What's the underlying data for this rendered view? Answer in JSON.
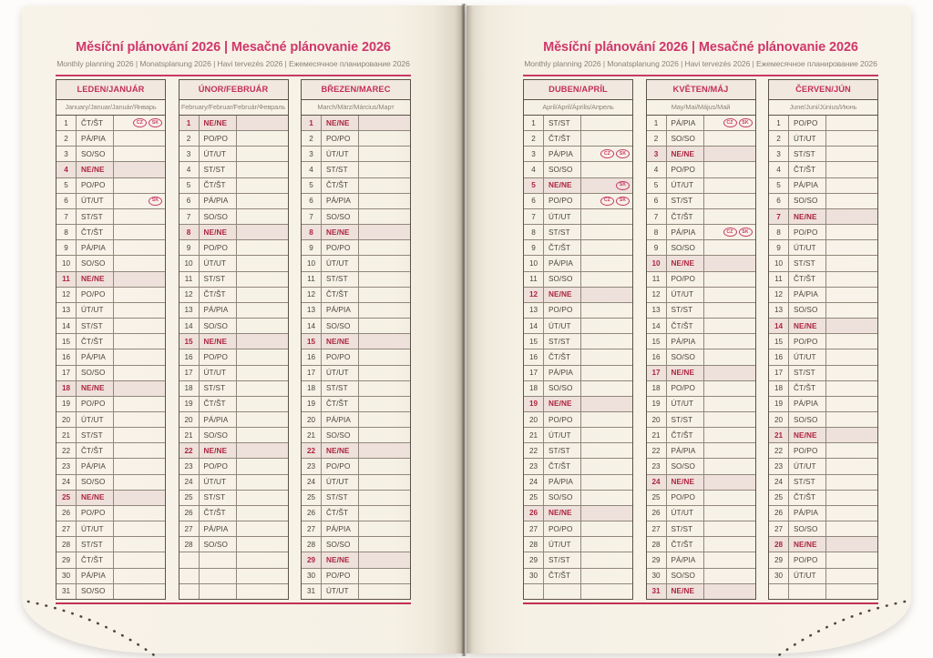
{
  "header": {
    "title": "Měsíční plánování 2026 | Mesačné plánovanie 2026",
    "subtitle": "Monthly planning 2026 | Monatsplanung 2026 | Havi tervezés 2026 | Ежемесячное планирование 2026"
  },
  "colors": {
    "accent_pink": "#d0376b",
    "rule_pink": "#c93a68",
    "month_header_pink": "#c42f58",
    "sunday_text_red": "#ad2540",
    "sunday_row_bg": "#eee1db",
    "page_cream": "#f6f1e5",
    "day_text": "#4a443b",
    "muted_text": "#8b8478",
    "grid_line": "#90877a"
  },
  "holiday_badge_labels": [
    "CZ",
    "SK"
  ],
  "months": [
    {
      "id": "january",
      "page": "left",
      "name": "LEDEN/JANUÁR",
      "subtitle": "January/Januar/Január/Январь",
      "rows": [
        {
          "n": "1",
          "d": "ČT/ŠT",
          "b": [
            "CZ",
            "SK"
          ]
        },
        {
          "n": "2",
          "d": "PÁ/PIA"
        },
        {
          "n": "3",
          "d": "SO/SO"
        },
        {
          "n": "4",
          "d": "NE/NE",
          "s": 1
        },
        {
          "n": "5",
          "d": "PO/PO"
        },
        {
          "n": "6",
          "d": "ÚT/UT",
          "b": [
            "SK"
          ]
        },
        {
          "n": "7",
          "d": "ST/ST"
        },
        {
          "n": "8",
          "d": "ČT/ŠT"
        },
        {
          "n": "9",
          "d": "PÁ/PIA"
        },
        {
          "n": "10",
          "d": "SO/SO"
        },
        {
          "n": "11",
          "d": "NE/NE",
          "s": 1
        },
        {
          "n": "12",
          "d": "PO/PO"
        },
        {
          "n": "13",
          "d": "ÚT/UT"
        },
        {
          "n": "14",
          "d": "ST/ST"
        },
        {
          "n": "15",
          "d": "ČT/ŠT"
        },
        {
          "n": "16",
          "d": "PÁ/PIA"
        },
        {
          "n": "17",
          "d": "SO/SO"
        },
        {
          "n": "18",
          "d": "NE/NE",
          "s": 1
        },
        {
          "n": "19",
          "d": "PO/PO"
        },
        {
          "n": "20",
          "d": "ÚT/UT"
        },
        {
          "n": "21",
          "d": "ST/ST"
        },
        {
          "n": "22",
          "d": "ČT/ŠT"
        },
        {
          "n": "23",
          "d": "PÁ/PIA"
        },
        {
          "n": "24",
          "d": "SO/SO"
        },
        {
          "n": "25",
          "d": "NE/NE",
          "s": 1
        },
        {
          "n": "26",
          "d": "PO/PO"
        },
        {
          "n": "27",
          "d": "ÚT/UT"
        },
        {
          "n": "28",
          "d": "ST/ST"
        },
        {
          "n": "29",
          "d": "ČT/ŠT"
        },
        {
          "n": "30",
          "d": "PÁ/PIA"
        },
        {
          "n": "31",
          "d": "SO/SO"
        }
      ]
    },
    {
      "id": "february",
      "page": "left",
      "name": "ÚNOR/FEBRUÁR",
      "subtitle": "February/Februar/Február/Февраль",
      "rows": [
        {
          "n": "1",
          "d": "NE/NE",
          "s": 1
        },
        {
          "n": "2",
          "d": "PO/PO"
        },
        {
          "n": "3",
          "d": "ÚT/UT"
        },
        {
          "n": "4",
          "d": "ST/ST"
        },
        {
          "n": "5",
          "d": "ČT/ŠT"
        },
        {
          "n": "6",
          "d": "PÁ/PIA"
        },
        {
          "n": "7",
          "d": "SO/SO"
        },
        {
          "n": "8",
          "d": "NE/NE",
          "s": 1
        },
        {
          "n": "9",
          "d": "PO/PO"
        },
        {
          "n": "10",
          "d": "ÚT/UT"
        },
        {
          "n": "11",
          "d": "ST/ST"
        },
        {
          "n": "12",
          "d": "ČT/ŠT"
        },
        {
          "n": "13",
          "d": "PÁ/PIA"
        },
        {
          "n": "14",
          "d": "SO/SO"
        },
        {
          "n": "15",
          "d": "NE/NE",
          "s": 1
        },
        {
          "n": "16",
          "d": "PO/PO"
        },
        {
          "n": "17",
          "d": "ÚT/UT"
        },
        {
          "n": "18",
          "d": "ST/ST"
        },
        {
          "n": "19",
          "d": "ČT/ŠT"
        },
        {
          "n": "20",
          "d": "PÁ/PIA"
        },
        {
          "n": "21",
          "d": "SO/SO"
        },
        {
          "n": "22",
          "d": "NE/NE",
          "s": 1
        },
        {
          "n": "23",
          "d": "PO/PO"
        },
        {
          "n": "24",
          "d": "ÚT/UT"
        },
        {
          "n": "25",
          "d": "ST/ST"
        },
        {
          "n": "26",
          "d": "ČT/ŠT"
        },
        {
          "n": "27",
          "d": "PÁ/PIA"
        },
        {
          "n": "28",
          "d": "SO/SO"
        },
        {
          "n": "",
          "d": ""
        },
        {
          "n": "",
          "d": ""
        },
        {
          "n": "",
          "d": ""
        }
      ]
    },
    {
      "id": "march",
      "page": "left",
      "name": "BŘEZEN/MAREC",
      "subtitle": "March/März/Március/Март",
      "rows": [
        {
          "n": "1",
          "d": "NE/NE",
          "s": 1
        },
        {
          "n": "2",
          "d": "PO/PO"
        },
        {
          "n": "3",
          "d": "ÚT/UT"
        },
        {
          "n": "4",
          "d": "ST/ST"
        },
        {
          "n": "5",
          "d": "ČT/ŠT"
        },
        {
          "n": "6",
          "d": "PÁ/PIA"
        },
        {
          "n": "7",
          "d": "SO/SO"
        },
        {
          "n": "8",
          "d": "NE/NE",
          "s": 1
        },
        {
          "n": "9",
          "d": "PO/PO"
        },
        {
          "n": "10",
          "d": "ÚT/UT"
        },
        {
          "n": "11",
          "d": "ST/ST"
        },
        {
          "n": "12",
          "d": "ČT/ŠT"
        },
        {
          "n": "13",
          "d": "PÁ/PIA"
        },
        {
          "n": "14",
          "d": "SO/SO"
        },
        {
          "n": "15",
          "d": "NE/NE",
          "s": 1
        },
        {
          "n": "16",
          "d": "PO/PO"
        },
        {
          "n": "17",
          "d": "ÚT/UT"
        },
        {
          "n": "18",
          "d": "ST/ST"
        },
        {
          "n": "19",
          "d": "ČT/ŠT"
        },
        {
          "n": "20",
          "d": "PÁ/PIA"
        },
        {
          "n": "21",
          "d": "SO/SO"
        },
        {
          "n": "22",
          "d": "NE/NE",
          "s": 1
        },
        {
          "n": "23",
          "d": "PO/PO"
        },
        {
          "n": "24",
          "d": "ÚT/UT"
        },
        {
          "n": "25",
          "d": "ST/ST"
        },
        {
          "n": "26",
          "d": "ČT/ŠT"
        },
        {
          "n": "27",
          "d": "PÁ/PIA"
        },
        {
          "n": "28",
          "d": "SO/SO"
        },
        {
          "n": "29",
          "d": "NE/NE",
          "s": 1
        },
        {
          "n": "30",
          "d": "PO/PO"
        },
        {
          "n": "31",
          "d": "ÚT/UT"
        }
      ]
    },
    {
      "id": "april",
      "page": "right",
      "name": "DUBEN/APRÍL",
      "subtitle": "April/April/Április/Апрель",
      "rows": [
        {
          "n": "1",
          "d": "ST/ST"
        },
        {
          "n": "2",
          "d": "ČT/ŠT"
        },
        {
          "n": "3",
          "d": "PÁ/PIA",
          "b": [
            "CZ",
            "SK"
          ]
        },
        {
          "n": "4",
          "d": "SO/SO"
        },
        {
          "n": "5",
          "d": "NE/NE",
          "s": 1,
          "b": [
            "SK"
          ]
        },
        {
          "n": "6",
          "d": "PO/PO",
          "b": [
            "CZ",
            "SK"
          ]
        },
        {
          "n": "7",
          "d": "ÚT/UT"
        },
        {
          "n": "8",
          "d": "ST/ST"
        },
        {
          "n": "9",
          "d": "ČT/ŠT"
        },
        {
          "n": "10",
          "d": "PÁ/PIA"
        },
        {
          "n": "11",
          "d": "SO/SO"
        },
        {
          "n": "12",
          "d": "NE/NE",
          "s": 1
        },
        {
          "n": "13",
          "d": "PO/PO"
        },
        {
          "n": "14",
          "d": "ÚT/UT"
        },
        {
          "n": "15",
          "d": "ST/ST"
        },
        {
          "n": "16",
          "d": "ČT/ŠT"
        },
        {
          "n": "17",
          "d": "PÁ/PIA"
        },
        {
          "n": "18",
          "d": "SO/SO"
        },
        {
          "n": "19",
          "d": "NE/NE",
          "s": 1
        },
        {
          "n": "20",
          "d": "PO/PO"
        },
        {
          "n": "21",
          "d": "ÚT/UT"
        },
        {
          "n": "22",
          "d": "ST/ST"
        },
        {
          "n": "23",
          "d": "ČT/ŠT"
        },
        {
          "n": "24",
          "d": "PÁ/PIA"
        },
        {
          "n": "25",
          "d": "SO/SO"
        },
        {
          "n": "26",
          "d": "NE/NE",
          "s": 1
        },
        {
          "n": "27",
          "d": "PO/PO"
        },
        {
          "n": "28",
          "d": "ÚT/UT"
        },
        {
          "n": "29",
          "d": "ST/ST"
        },
        {
          "n": "30",
          "d": "ČT/ŠT"
        },
        {
          "n": "",
          "d": ""
        }
      ]
    },
    {
      "id": "may",
      "page": "right",
      "name": "KVĚTEN/MÁJ",
      "subtitle": "May/Mai/Május/Май",
      "rows": [
        {
          "n": "1",
          "d": "PÁ/PIA",
          "b": [
            "CZ",
            "SK"
          ]
        },
        {
          "n": "2",
          "d": "SO/SO"
        },
        {
          "n": "3",
          "d": "NE/NE",
          "s": 1
        },
        {
          "n": "4",
          "d": "PO/PO"
        },
        {
          "n": "5",
          "d": "ÚT/UT"
        },
        {
          "n": "6",
          "d": "ST/ST"
        },
        {
          "n": "7",
          "d": "ČT/ŠT"
        },
        {
          "n": "8",
          "d": "PÁ/PIA",
          "b": [
            "CZ",
            "SK"
          ]
        },
        {
          "n": "9",
          "d": "SO/SO"
        },
        {
          "n": "10",
          "d": "NE/NE",
          "s": 1
        },
        {
          "n": "11",
          "d": "PO/PO"
        },
        {
          "n": "12",
          "d": "ÚT/UT"
        },
        {
          "n": "13",
          "d": "ST/ST"
        },
        {
          "n": "14",
          "d": "ČT/ŠT"
        },
        {
          "n": "15",
          "d": "PÁ/PIA"
        },
        {
          "n": "16",
          "d": "SO/SO"
        },
        {
          "n": "17",
          "d": "NE/NE",
          "s": 1
        },
        {
          "n": "18",
          "d": "PO/PO"
        },
        {
          "n": "19",
          "d": "ÚT/UT"
        },
        {
          "n": "20",
          "d": "ST/ST"
        },
        {
          "n": "21",
          "d": "ČT/ŠT"
        },
        {
          "n": "22",
          "d": "PÁ/PIA"
        },
        {
          "n": "23",
          "d": "SO/SO"
        },
        {
          "n": "24",
          "d": "NE/NE",
          "s": 1
        },
        {
          "n": "25",
          "d": "PO/PO"
        },
        {
          "n": "26",
          "d": "ÚT/UT"
        },
        {
          "n": "27",
          "d": "ST/ST"
        },
        {
          "n": "28",
          "d": "ČT/ŠT"
        },
        {
          "n": "29",
          "d": "PÁ/PIA"
        },
        {
          "n": "30",
          "d": "SO/SO"
        },
        {
          "n": "31",
          "d": "NE/NE",
          "s": 1
        }
      ]
    },
    {
      "id": "june",
      "page": "right",
      "name": "ČERVEN/JÚN",
      "subtitle": "June/Juni/Június/Июнь",
      "rows": [
        {
          "n": "1",
          "d": "PO/PO"
        },
        {
          "n": "2",
          "d": "ÚT/UT"
        },
        {
          "n": "3",
          "d": "ST/ST"
        },
        {
          "n": "4",
          "d": "ČT/ŠT"
        },
        {
          "n": "5",
          "d": "PÁ/PIA"
        },
        {
          "n": "6",
          "d": "SO/SO"
        },
        {
          "n": "7",
          "d": "NE/NE",
          "s": 1
        },
        {
          "n": "8",
          "d": "PO/PO"
        },
        {
          "n": "9",
          "d": "ÚT/UT"
        },
        {
          "n": "10",
          "d": "ST/ST"
        },
        {
          "n": "11",
          "d": "ČT/ŠT"
        },
        {
          "n": "12",
          "d": "PÁ/PIA"
        },
        {
          "n": "13",
          "d": "SO/SO"
        },
        {
          "n": "14",
          "d": "NE/NE",
          "s": 1
        },
        {
          "n": "15",
          "d": "PO/PO"
        },
        {
          "n": "16",
          "d": "ÚT/UT"
        },
        {
          "n": "17",
          "d": "ST/ST"
        },
        {
          "n": "18",
          "d": "ČT/ŠT"
        },
        {
          "n": "19",
          "d": "PÁ/PIA"
        },
        {
          "n": "20",
          "d": "SO/SO"
        },
        {
          "n": "21",
          "d": "NE/NE",
          "s": 1
        },
        {
          "n": "22",
          "d": "PO/PO"
        },
        {
          "n": "23",
          "d": "ÚT/UT"
        },
        {
          "n": "24",
          "d": "ST/ST"
        },
        {
          "n": "25",
          "d": "ČT/ŠT"
        },
        {
          "n": "26",
          "d": "PÁ/PIA"
        },
        {
          "n": "27",
          "d": "SO/SO"
        },
        {
          "n": "28",
          "d": "NE/NE",
          "s": 1
        },
        {
          "n": "29",
          "d": "PO/PO"
        },
        {
          "n": "30",
          "d": "ÚT/UT"
        },
        {
          "n": "",
          "d": ""
        }
      ]
    }
  ]
}
